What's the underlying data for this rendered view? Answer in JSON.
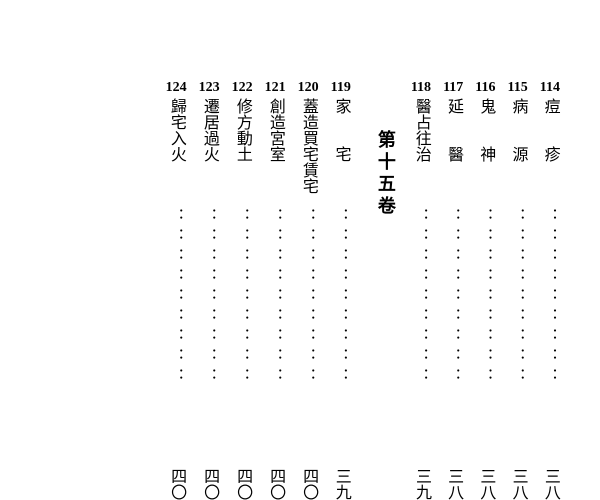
{
  "section_header": "第十五卷",
  "columns": [
    {
      "num": "114",
      "title": "痘　　疹",
      "page": "三八"
    },
    {
      "num": "115",
      "title": "病　　源",
      "page": "三八"
    },
    {
      "num": "116",
      "title": "鬼　　神",
      "page": "三八"
    },
    {
      "num": "117",
      "title": "延　　醫",
      "page": "三八"
    },
    {
      "num": "118",
      "title": "醫占往治",
      "page": "三九"
    }
  ],
  "columns2": [
    {
      "num": "119",
      "title": "家　　宅",
      "page": "三九"
    },
    {
      "num": "120",
      "title": "蓋造買宅賃宅",
      "page": "四〇"
    },
    {
      "num": "121",
      "title": "創造宮室",
      "page": "四〇"
    },
    {
      "num": "122",
      "title": "修方動土",
      "page": "四〇"
    },
    {
      "num": "123",
      "title": "遷居過火",
      "page": "四〇"
    },
    {
      "num": "124",
      "title": "歸宅入火",
      "page": "四〇"
    }
  ],
  "dots": "：：：：：：：：："
}
